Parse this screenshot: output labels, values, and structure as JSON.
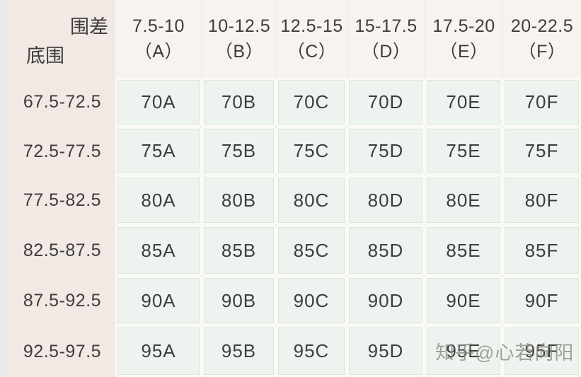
{
  "chart_data": {
    "type": "table",
    "corner": {
      "top_right": "围差",
      "bottom_left": "底围"
    },
    "columns": [
      {
        "range": "7.5-10",
        "cup": "（A）"
      },
      {
        "range": "10-12.5",
        "cup": "（B）"
      },
      {
        "range": "12.5-15",
        "cup": "（C）"
      },
      {
        "range": "15-17.5",
        "cup": "（D）"
      },
      {
        "range": "17.5-20",
        "cup": "（E）"
      },
      {
        "range": "20-22.5",
        "cup": "（F）"
      }
    ],
    "rows": [
      {
        "band": "67.5-72.5",
        "sizes": [
          "70A",
          "70B",
          "70C",
          "70D",
          "70E",
          "70F"
        ]
      },
      {
        "band": "72.5-77.5",
        "sizes": [
          "75A",
          "75B",
          "75C",
          "75D",
          "75E",
          "75F"
        ]
      },
      {
        "band": "77.5-82.5",
        "sizes": [
          "80A",
          "80B",
          "80C",
          "80D",
          "80E",
          "80F"
        ]
      },
      {
        "band": "82.5-87.5",
        "sizes": [
          "85A",
          "85B",
          "85C",
          "85D",
          "85E",
          "85F"
        ]
      },
      {
        "band": "87.5-92.5",
        "sizes": [
          "90A",
          "90B",
          "90C",
          "90D",
          "90E",
          "90F"
        ]
      },
      {
        "band": "92.5-97.5",
        "sizes": [
          "95A",
          "95B",
          "95C",
          "95D",
          "95E",
          "95F"
        ]
      }
    ]
  },
  "watermark": {
    "text": "知乎@心若向阳"
  },
  "colors": {
    "page_bg": "#f7f3ee",
    "row_header_bg": "#f2e9e5",
    "cell_bg": "#edf4ef",
    "cell_border": "#dbe5dc",
    "cell_gap": "#fafaf6",
    "text": "#3d3d3d",
    "watermark": "#8e8b86"
  }
}
